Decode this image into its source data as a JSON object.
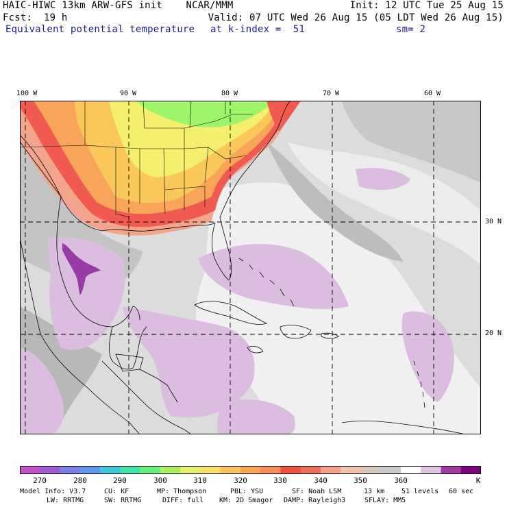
{
  "header": {
    "title": "HAIC-HIWC 13km ARW-GFS init    NCAR/MMM",
    "init": "Init: 12 UTC Tue 25 Aug 15",
    "fcst_label": "Fcst:",
    "fcst_value": "19 h",
    "valid": "Valid: 07 UTC Wed 26 Aug 15 (05 LDT Wed 26 Aug 15)",
    "field": "Equivalent potential temperature",
    "level": "at k-index =  51",
    "smooth": "sm= 2"
  },
  "map": {
    "lon_labels": [
      "100 W",
      "90 W",
      "80 W",
      "70 W",
      "60 W"
    ],
    "lat_labels": [
      "30 N",
      "20 N"
    ],
    "colors": {
      "grey_dark": "#a9a9a9",
      "grey_mid": "#c4c4c4",
      "grey_light": "#dcdcdc",
      "white_band": "#f0f0f0",
      "lavender": "#dbbde0",
      "purple": "#9a3aa8",
      "salmon": "#f2a48c",
      "red": "#f05a50",
      "orange": "#f8a55a",
      "yellow_orange": "#fac85a",
      "yellow": "#f5ef6e",
      "green": "#9ef56a"
    }
  },
  "colorbar": {
    "colors": [
      "#c850c8",
      "#a05ad2",
      "#7d7de6",
      "#5f96f0",
      "#3cc8dc",
      "#3ce6aa",
      "#64f07d",
      "#aaf05a",
      "#e6f064",
      "#fae164",
      "#fac35a",
      "#faa550",
      "#fa8c5a",
      "#f0503c",
      "#f06e5a",
      "#f5a08c",
      "#f0c3aa",
      "#d7c8bb",
      "#c8c8c8",
      "#ffffff",
      "#e1c3e6",
      "#a03ca0",
      "#7d007d"
    ],
    "labels": [
      "270",
      "280",
      "290",
      "300",
      "310",
      "320",
      "330",
      "340",
      "350",
      "360"
    ],
    "unit": "K"
  },
  "footer": {
    "line1": [
      "Model Info: V3.7",
      "CU: KF",
      "MP: Thompson",
      "PBL: YSU",
      "SF: Noah LSM",
      "13 km",
      "51 levels",
      "60 sec"
    ],
    "line2": [
      "LW: RRTMG",
      "SW: RRTMG",
      "DIFF: full",
      "KM: 2D Smagor",
      "DAMP: Rayleigh3",
      "SFLAY: MM5"
    ]
  }
}
